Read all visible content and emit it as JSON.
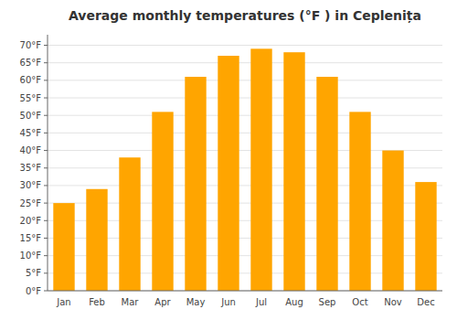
{
  "chart_data": {
    "type": "bar",
    "title": "Average monthly temperatures (°F ) in Ceplenița",
    "categories": [
      "Jan",
      "Feb",
      "Mar",
      "Apr",
      "May",
      "Jun",
      "Jul",
      "Aug",
      "Sep",
      "Oct",
      "Nov",
      "Dec"
    ],
    "values": [
      25,
      29,
      38,
      51,
      61,
      67,
      69,
      68,
      61,
      51,
      40,
      31
    ],
    "color": "#FFA500",
    "ylim": [
      0,
      73
    ],
    "yticks": [
      {
        "value": 0,
        "label": "0°F"
      },
      {
        "value": 5,
        "label": "5°F"
      },
      {
        "value": 10,
        "label": "10°F"
      },
      {
        "value": 15,
        "label": "15°F"
      },
      {
        "value": 20,
        "label": "20°F"
      },
      {
        "value": 25,
        "label": "25°F"
      },
      {
        "value": 30,
        "label": "30°F"
      },
      {
        "value": 35,
        "label": "35°F"
      },
      {
        "value": 40,
        "label": "40°F"
      },
      {
        "value": 45,
        "label": "45°F"
      },
      {
        "value": 50,
        "label": "50°F"
      },
      {
        "value": 55,
        "label": "55°F"
      },
      {
        "value": 60,
        "label": "60°F"
      },
      {
        "value": 65,
        "label": "65°F"
      },
      {
        "value": 70,
        "label": "70°F"
      }
    ],
    "grid": true
  }
}
